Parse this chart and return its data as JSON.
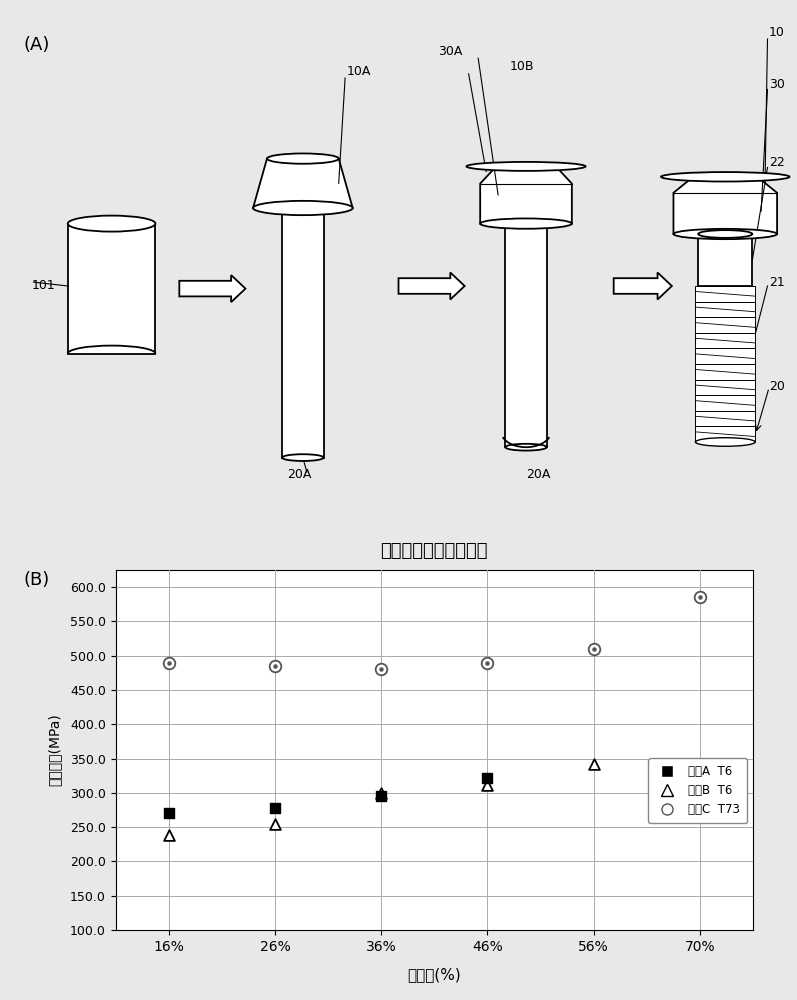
{
  "chart_title": "轴挤压率与强度的关系",
  "xlabel": "挤压率(%)",
  "ylabel": "拉伸强度(MPa)",
  "panel_label_A": "(A)",
  "panel_label_B": "(B)",
  "x_categories": [
    "16%",
    "26%",
    "36%",
    "46%",
    "56%",
    "70%"
  ],
  "x_values": [
    16,
    26,
    36,
    46,
    56,
    70
  ],
  "series_A_label": "样品A  T6",
  "series_B_label": "样品B  T6",
  "series_C_label": "样品C  T73",
  "series_A_y": [
    270,
    278,
    295,
    322,
    null,
    null
  ],
  "series_B_y": [
    238,
    255,
    300,
    312,
    342,
    null
  ],
  "series_C_y": [
    490,
    485,
    480,
    490,
    510,
    585
  ],
  "ylim_min": 100.0,
  "ylim_max": 625.0,
  "yticks": [
    100.0,
    150.0,
    200.0,
    250.0,
    300.0,
    350.0,
    400.0,
    450.0,
    500.0,
    550.0,
    600.0
  ],
  "ytick_labels": [
    "100.0",
    "150.0",
    "200.0",
    "250.0",
    "300.0",
    "350.0",
    "400.0",
    "450.0",
    "500.0",
    "550.0",
    "600.0"
  ],
  "bg_color": "#e8e8e8",
  "plot_bg_color": "#ffffff",
  "grid_color": "#aaaaaa",
  "diag_label_101": "101",
  "diag_label_10A": "10A",
  "diag_label_30A": "30A",
  "diag_label_10B": "10B",
  "diag_label_30": "30",
  "diag_label_10": "10",
  "diag_label_30r": "30",
  "diag_label_22": "22",
  "diag_label_21": "21",
  "diag_label_20": "20",
  "diag_label_20A_1": "20A",
  "diag_label_20A_2": "20A"
}
